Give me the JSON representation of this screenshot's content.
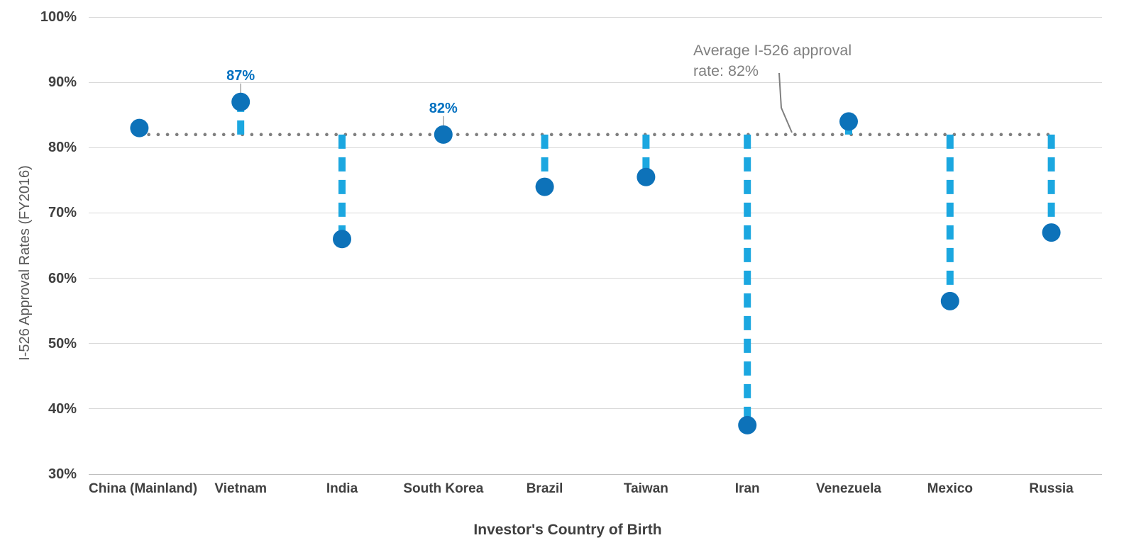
{
  "chart_data": {
    "type": "scatter",
    "subtype": "lollipop-vs-average",
    "title": "",
    "xlabel": "Investor's Country of Birth",
    "ylabel": "I-526 Approval Rates (FY2016)",
    "ylim": [
      30,
      100
    ],
    "grid": true,
    "yticks": [
      {
        "value": 100,
        "label": "100%"
      },
      {
        "value": 90,
        "label": "90%"
      },
      {
        "value": 80,
        "label": "80%"
      },
      {
        "value": 70,
        "label": "70%"
      },
      {
        "value": 60,
        "label": "60%"
      },
      {
        "value": 50,
        "label": "50%"
      },
      {
        "value": 40,
        "label": "40%"
      },
      {
        "value": 30,
        "label": "30%"
      }
    ],
    "categories": [
      "China (Mainland)",
      "Vietnam",
      "India",
      "South Korea",
      "Brazil",
      "Taiwan",
      "Iran",
      "Venezuela",
      "Mexico",
      "Russia"
    ],
    "points": [
      {
        "country": "China (Mainland)",
        "value": 83,
        "label": ""
      },
      {
        "country": "Vietnam",
        "value": 87,
        "label": "87%"
      },
      {
        "country": "India",
        "value": 66,
        "label": ""
      },
      {
        "country": "South Korea",
        "value": 82,
        "label": "82%"
      },
      {
        "country": "Brazil",
        "value": 74,
        "label": ""
      },
      {
        "country": "Taiwan",
        "value": 75.5,
        "label": ""
      },
      {
        "country": "Iran",
        "value": 37.5,
        "label": ""
      },
      {
        "country": "Venezuela",
        "value": 84,
        "label": ""
      },
      {
        "country": "Mexico",
        "value": 56.5,
        "label": ""
      },
      {
        "country": "Russia",
        "value": 67,
        "label": ""
      }
    ],
    "average_line": {
      "value": 82,
      "style": "dotted"
    },
    "annotation": {
      "text": "Average I-526 approval rate: 82%"
    },
    "legend": "none",
    "colors": {
      "point": "#0D72B9",
      "stem": "#1BA7E0",
      "data_label": "#0070C0",
      "average_dots": "#7F7F7F",
      "annotation_text": "#808080",
      "leader_line": "#7F7F7F",
      "label_leader": "#A6A6A6",
      "gridline": "#D9D9D9",
      "axis_line": "#BFBFBF",
      "tick_label": "#404040",
      "axis_title": "#404040",
      "y_axis_title": "#595959"
    }
  }
}
